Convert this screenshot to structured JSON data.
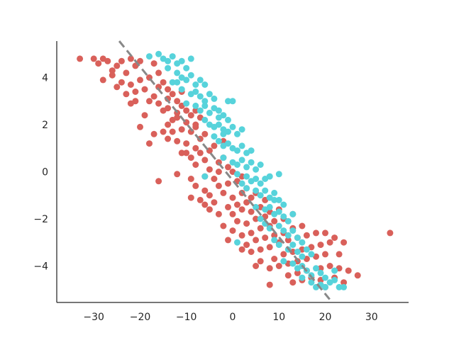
{
  "chart_data": {
    "type": "scatter",
    "title": "",
    "xlabel": "",
    "ylabel": "",
    "xlim": [
      -38,
      38
    ],
    "ylim": [
      -5.55,
      5.55
    ],
    "xticks": [
      -30,
      -20,
      -10,
      0,
      10,
      20,
      30
    ],
    "yticks": [
      -4,
      -2,
      0,
      2,
      4
    ],
    "xtick_labels": [
      "−30",
      "−20",
      "−10",
      "0",
      "10",
      "20",
      "30"
    ],
    "ytick_labels": [
      "−4",
      "−2",
      "0",
      "2",
      "4"
    ],
    "grid": false,
    "legend": "none",
    "spines": [
      "left",
      "bottom"
    ],
    "series": [
      {
        "color": "#d9605a",
        "marker": "circle",
        "points": [
          [
            -33,
            4.8
          ],
          [
            -30,
            4.8
          ],
          [
            -29,
            4.6
          ],
          [
            -28,
            4.8
          ],
          [
            -27,
            4.7
          ],
          [
            -26,
            4.3
          ],
          [
            -25,
            4.5
          ],
          [
            -24,
            4.7
          ],
          [
            -23,
            4.2
          ],
          [
            -22,
            4.8
          ],
          [
            -21,
            4.5
          ],
          [
            -20,
            4.7
          ],
          [
            -28,
            3.9
          ],
          [
            -26,
            4.1
          ],
          [
            -24,
            3.8
          ],
          [
            -22,
            3.7
          ],
          [
            -20,
            3.9
          ],
          [
            -18,
            4.0
          ],
          [
            -17,
            4.6
          ],
          [
            -16,
            4.2
          ],
          [
            -15,
            3.8
          ],
          [
            -14,
            3.5
          ],
          [
            -23,
            3.3
          ],
          [
            -21,
            3.4
          ],
          [
            -19,
            3.5
          ],
          [
            -17,
            3.2
          ],
          [
            -16,
            3.6
          ],
          [
            -22,
            2.9
          ],
          [
            -21,
            3.0
          ],
          [
            -18,
            3.0
          ],
          [
            -16,
            2.9
          ],
          [
            -14,
            3.1
          ],
          [
            -13,
            3.3
          ],
          [
            -12,
            3.0
          ],
          [
            -11,
            3.4
          ],
          [
            -15,
            2.6
          ],
          [
            -14,
            2.7
          ],
          [
            -12,
            2.5
          ],
          [
            -11,
            2.8
          ],
          [
            -10,
            2.6
          ],
          [
            -13,
            2.2
          ],
          [
            -12,
            2.3
          ],
          [
            -10,
            2.1
          ],
          [
            -9,
            2.4
          ],
          [
            -8,
            2.6
          ],
          [
            -7,
            2.3
          ],
          [
            -20,
            1.9
          ],
          [
            -17,
            1.6
          ],
          [
            -15,
            1.7
          ],
          [
            -13,
            1.7
          ],
          [
            -11,
            1.8
          ],
          [
            -9,
            1.7
          ],
          [
            -8,
            1.9
          ],
          [
            -18,
            1.2
          ],
          [
            -14,
            1.4
          ],
          [
            -12,
            1.3
          ],
          [
            -10,
            1.2
          ],
          [
            -8,
            1.0
          ],
          [
            -7,
            1.4
          ],
          [
            -6,
            1.6
          ],
          [
            -11,
            0.8
          ],
          [
            -9,
            0.6
          ],
          [
            -7,
            0.8
          ],
          [
            -5,
            0.9
          ],
          [
            -4,
            1.1
          ],
          [
            -8,
            0.3
          ],
          [
            -6,
            0.5
          ],
          [
            -5,
            0.1
          ],
          [
            -3,
            0.4
          ],
          [
            -2,
            0.6
          ],
          [
            -12,
            -0.1
          ],
          [
            -9,
            -0.3
          ],
          [
            -6,
            -0.2
          ],
          [
            -4,
            -0.3
          ],
          [
            -3,
            0.0
          ],
          [
            -1,
            0.2
          ],
          [
            -16,
            -0.4
          ],
          [
            -8,
            -0.6
          ],
          [
            -6,
            -0.8
          ],
          [
            -3,
            -0.6
          ],
          [
            -1,
            -0.5
          ],
          [
            1,
            -0.4
          ],
          [
            2,
            -0.2
          ],
          [
            -9,
            -1.1
          ],
          [
            -7,
            -1.2
          ],
          [
            -5,
            -1.0
          ],
          [
            -2,
            -0.9
          ],
          [
            0,
            -1.1
          ],
          [
            2,
            -0.9
          ],
          [
            3,
            -0.7
          ],
          [
            -6,
            -1.4
          ],
          [
            -4,
            -1.3
          ],
          [
            -1,
            -1.5
          ],
          [
            1,
            -1.4
          ],
          [
            3,
            -1.3
          ],
          [
            4,
            -1.1
          ],
          [
            5,
            -0.9
          ],
          [
            -3,
            -1.8
          ],
          [
            0,
            -1.8
          ],
          [
            2,
            -1.6
          ],
          [
            4,
            -1.7
          ],
          [
            6,
            -1.5
          ],
          [
            7,
            -1.2
          ],
          [
            -2,
            -2.3
          ],
          [
            1,
            -2.1
          ],
          [
            3,
            -2.2
          ],
          [
            5,
            -2.0
          ],
          [
            7,
            -1.9
          ],
          [
            8,
            -1.7
          ],
          [
            10,
            -1.6
          ],
          [
            2,
            -2.7
          ],
          [
            4,
            -2.6
          ],
          [
            6,
            -2.4
          ],
          [
            8,
            -2.3
          ],
          [
            9,
            -2.1
          ],
          [
            11,
            -2.0
          ],
          [
            13,
            -1.8
          ],
          [
            -1,
            -2.9
          ],
          [
            3,
            -3.1
          ],
          [
            5,
            -2.9
          ],
          [
            7,
            -2.8
          ],
          [
            9,
            -2.7
          ],
          [
            11,
            -2.6
          ],
          [
            13,
            -2.4
          ],
          [
            15,
            -2.3
          ],
          [
            4,
            -3.4
          ],
          [
            6,
            -3.3
          ],
          [
            8,
            -3.2
          ],
          [
            10,
            -3.0
          ],
          [
            12,
            -2.9
          ],
          [
            14,
            -2.8
          ],
          [
            16,
            -2.7
          ],
          [
            18,
            -2.6
          ],
          [
            20,
            -2.6
          ],
          [
            6,
            -3.8
          ],
          [
            9,
            -3.7
          ],
          [
            11,
            -3.5
          ],
          [
            13,
            -3.4
          ],
          [
            15,
            -3.3
          ],
          [
            17,
            -3.2
          ],
          [
            19,
            -3.1
          ],
          [
            21,
            -3.0
          ],
          [
            22,
            -2.8
          ],
          [
            24,
            -3.0
          ],
          [
            5,
            -4.0
          ],
          [
            8,
            -4.1
          ],
          [
            10,
            -4.0
          ],
          [
            12,
            -3.9
          ],
          [
            14,
            -3.8
          ],
          [
            16,
            -3.7
          ],
          [
            18,
            -3.6
          ],
          [
            20,
            -3.5
          ],
          [
            23,
            -3.5
          ],
          [
            12,
            -4.4
          ],
          [
            14,
            -4.3
          ],
          [
            16,
            -4.2
          ],
          [
            19,
            -4.1
          ],
          [
            21,
            -4.0
          ],
          [
            23,
            -4.1
          ],
          [
            25,
            -4.2
          ],
          [
            27,
            -4.4
          ],
          [
            13,
            -4.7
          ],
          [
            15,
            -4.6
          ],
          [
            17,
            -4.5
          ],
          [
            19,
            -4.6
          ],
          [
            22,
            -4.5
          ],
          [
            24,
            -4.7
          ],
          [
            20,
            -4.9
          ],
          [
            8,
            -4.8
          ],
          [
            -10,
            0.8
          ],
          [
            -14,
            2.0
          ],
          [
            -8,
            2.0
          ],
          [
            -5,
            -1.6
          ],
          [
            0,
            -2.5
          ],
          [
            -25,
            3.6
          ],
          [
            -19,
            2.4
          ],
          [
            34,
            -2.6
          ],
          [
            2,
            -3.3
          ],
          [
            0,
            0.0
          ],
          [
            -2,
            1.3
          ]
        ]
      },
      {
        "color": "#57d3db",
        "marker": "circle",
        "points": [
          [
            -18,
            4.9
          ],
          [
            -16,
            5.0
          ],
          [
            -15,
            4.8
          ],
          [
            -14,
            4.7
          ],
          [
            -13,
            4.9
          ],
          [
            -12,
            4.6
          ],
          [
            -11,
            4.7
          ],
          [
            -10,
            4.4
          ],
          [
            -9,
            4.8
          ],
          [
            -14,
            4.4
          ],
          [
            -12,
            4.2
          ],
          [
            -11,
            4.0
          ],
          [
            -10,
            3.9
          ],
          [
            -9,
            4.1
          ],
          [
            -8,
            3.7
          ],
          [
            -7,
            3.9
          ],
          [
            -6,
            3.7
          ],
          [
            -13,
            3.8
          ],
          [
            -11,
            3.5
          ],
          [
            -9,
            3.3
          ],
          [
            -8,
            3.4
          ],
          [
            -7,
            3.2
          ],
          [
            -6,
            3.0
          ],
          [
            -5,
            3.3
          ],
          [
            -4,
            3.1
          ],
          [
            -10,
            2.9
          ],
          [
            -8,
            2.8
          ],
          [
            -7,
            2.6
          ],
          [
            -6,
            2.8
          ],
          [
            -5,
            2.5
          ],
          [
            -4,
            2.7
          ],
          [
            -3,
            2.6
          ],
          [
            -2,
            2.4
          ],
          [
            -1,
            2.2
          ],
          [
            -6,
            2.2
          ],
          [
            -5,
            2.0
          ],
          [
            -4,
            1.9
          ],
          [
            -3,
            2.0
          ],
          [
            -2,
            1.8
          ],
          [
            -1,
            1.7
          ],
          [
            0,
            1.9
          ],
          [
            1,
            1.6
          ],
          [
            2,
            1.8
          ],
          [
            -4,
            1.5
          ],
          [
            -3,
            1.3
          ],
          [
            -2,
            1.1
          ],
          [
            -1,
            1.2
          ],
          [
            0,
            1.0
          ],
          [
            1,
            0.9
          ],
          [
            2,
            1.1
          ],
          [
            3,
            0.8
          ],
          [
            4,
            0.9
          ],
          [
            -2,
            0.6
          ],
          [
            0,
            0.4
          ],
          [
            1,
            0.3
          ],
          [
            2,
            0.5
          ],
          [
            3,
            0.2
          ],
          [
            4,
            0.4
          ],
          [
            5,
            0.1
          ],
          [
            6,
            0.3
          ],
          [
            -6,
            -0.2
          ],
          [
            1,
            -0.1
          ],
          [
            3,
            -0.2
          ],
          [
            4,
            -0.4
          ],
          [
            5,
            -0.3
          ],
          [
            6,
            -0.5
          ],
          [
            7,
            -0.3
          ],
          [
            8,
            -0.2
          ],
          [
            3,
            -0.7
          ],
          [
            5,
            -0.8
          ],
          [
            6,
            -1.0
          ],
          [
            7,
            -0.8
          ],
          [
            8,
            -1.1
          ],
          [
            9,
            -0.9
          ],
          [
            10,
            -1.2
          ],
          [
            11,
            -1.4
          ],
          [
            5,
            -1.5
          ],
          [
            7,
            -1.6
          ],
          [
            8,
            -1.5
          ],
          [
            9,
            -1.8
          ],
          [
            10,
            -1.7
          ],
          [
            11,
            -1.9
          ],
          [
            12,
            -2.1
          ],
          [
            13,
            -1.8
          ],
          [
            7,
            -2.2
          ],
          [
            8,
            -2.4
          ],
          [
            10,
            -2.3
          ],
          [
            11,
            -2.5
          ],
          [
            12,
            -2.7
          ],
          [
            13,
            -2.5
          ],
          [
            14,
            -2.8
          ],
          [
            15,
            -3.0
          ],
          [
            9,
            -2.9
          ],
          [
            10,
            -3.1
          ],
          [
            12,
            -3.3
          ],
          [
            13,
            -3.1
          ],
          [
            14,
            -3.4
          ],
          [
            15,
            -3.6
          ],
          [
            16,
            -3.3
          ],
          [
            17,
            -3.5
          ],
          [
            11,
            -3.8
          ],
          [
            13,
            -3.9
          ],
          [
            14,
            -4.1
          ],
          [
            15,
            -4.0
          ],
          [
            16,
            -4.2
          ],
          [
            17,
            -4.4
          ],
          [
            18,
            -4.1
          ],
          [
            19,
            -4.3
          ],
          [
            20,
            -4.5
          ],
          [
            15,
            -4.5
          ],
          [
            17,
            -4.7
          ],
          [
            18,
            -4.9
          ],
          [
            19,
            -4.8
          ],
          [
            20,
            -4.9
          ],
          [
            21,
            -4.7
          ],
          [
            22,
            -4.6
          ],
          [
            23,
            -4.9
          ],
          [
            24,
            -4.9
          ],
          [
            22,
            -4.2
          ],
          [
            -1,
            3.0
          ],
          [
            0,
            3.0
          ],
          [
            -3,
            2.3
          ],
          [
            -2,
            1.6
          ],
          [
            2,
            -0.5
          ],
          [
            10,
            -0.1
          ],
          [
            9,
            -1.2
          ],
          [
            6,
            -2.0
          ],
          [
            1,
            -3.0
          ],
          [
            -12,
            3.8
          ]
        ]
      }
    ],
    "reference_line": {
      "color": "#888888",
      "style": "dashed",
      "points": [
        [
          -24.5,
          5.55
        ],
        [
          21.5,
          -5.55
        ]
      ]
    }
  }
}
